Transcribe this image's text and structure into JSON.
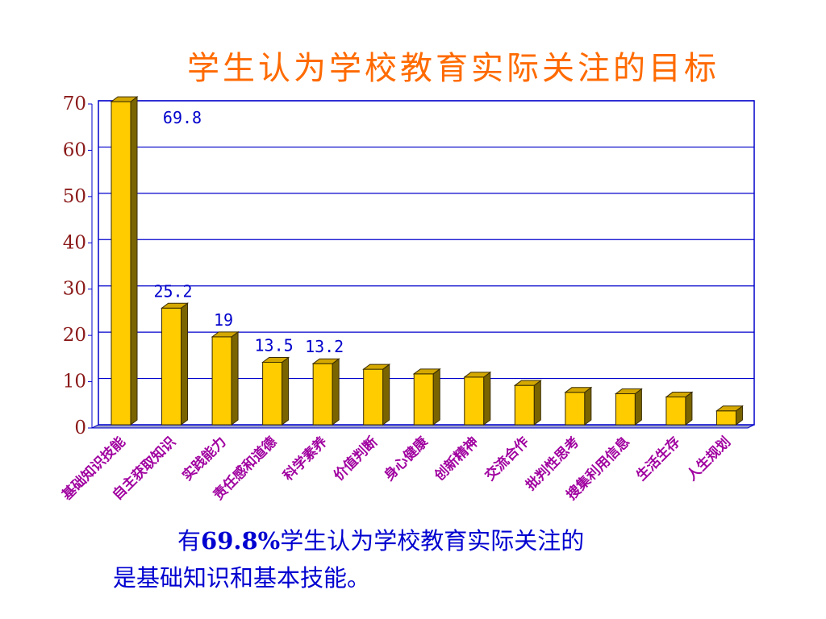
{
  "chart_data": {
    "type": "bar",
    "title": "学生认为学校教育实际关注的目标",
    "categories": [
      "基础知识技能",
      "自主获取知识",
      "实践能力",
      "责任感和道德",
      "科学素养",
      "价值判断",
      "身心健康",
      "创新精神",
      "交流合作",
      "批判性思考",
      "搜集利用信息",
      "生活生存",
      "人生规划"
    ],
    "values": [
      69.8,
      25.2,
      19,
      13.5,
      13.2,
      12,
      11,
      10.3,
      8.5,
      7,
      6.7,
      6,
      3
    ],
    "data_labels": [
      "69.8",
      "25.2",
      "19",
      "13.5",
      "13.2",
      null,
      null,
      null,
      null,
      null,
      null,
      null,
      null
    ],
    "ylim": [
      0,
      70
    ],
    "yticks": [
      "0",
      "10",
      "20",
      "30",
      "40",
      "50",
      "60",
      "70"
    ],
    "grid": true,
    "colors": {
      "bar_front": "#ffcc00",
      "bar_side": "#7a6400",
      "bar_top": "#d4a800",
      "grid": "#0000cc",
      "ytick_text": "#8b1a1a",
      "xtick_text": "#a000a0",
      "data_label": "#0000cc",
      "title": "#ff6a00",
      "caption": "#0000d0"
    }
  },
  "caption": {
    "line1_prefix": "有",
    "line1_number": "69.8%",
    "line1_suffix": "学生认为学校教育实际关注的",
    "line2": "是基础知识和基本技能。"
  }
}
